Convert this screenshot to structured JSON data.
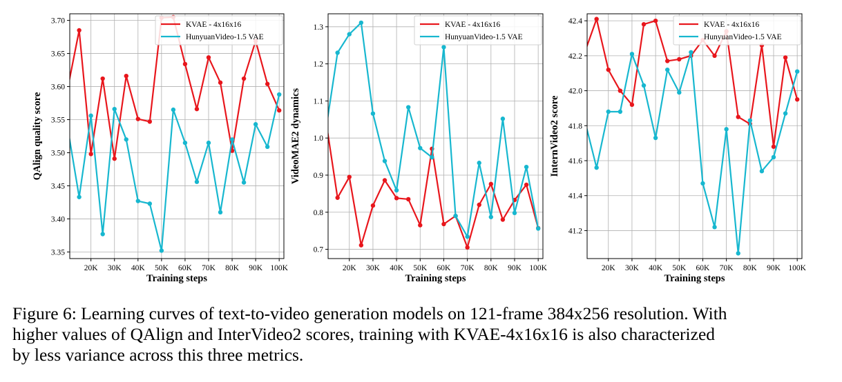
{
  "colors": {
    "kvae": "#e8161c",
    "hunyuan": "#17b7cf",
    "grid": "#b0b0b0"
  },
  "chart_data": [
    {
      "type": "line",
      "xlabel": "Training steps",
      "ylabel": "QAlign quality score",
      "xlim": [
        11000,
        102000
      ],
      "ylim": [
        3.34,
        3.71
      ],
      "xticks": [
        20000,
        30000,
        40000,
        50000,
        60000,
        70000,
        80000,
        90000,
        100000
      ],
      "xtick_labels": [
        "20K",
        "30K",
        "40K",
        "50K",
        "60K",
        "70K",
        "80K",
        "90K",
        "100K"
      ],
      "yticks": [
        3.35,
        3.4,
        3.45,
        3.5,
        3.55,
        3.6,
        3.65,
        3.7
      ],
      "ytick_labels": [
        "3.35",
        "3.40",
        "3.45",
        "3.50",
        "3.55",
        "3.60",
        "3.65",
        "3.70"
      ],
      "legend": "top-right",
      "grid": true,
      "x": [
        10000,
        15000,
        20000,
        25000,
        30000,
        35000,
        40000,
        45000,
        50000,
        55000,
        60000,
        65000,
        70000,
        75000,
        80000,
        85000,
        90000,
        95000,
        100000
      ],
      "series": [
        {
          "name": "KVAE - 4x16x16",
          "values": [
            3.595,
            3.685,
            3.498,
            3.612,
            3.491,
            3.616,
            3.551,
            3.547,
            3.704,
            3.705,
            3.634,
            3.566,
            3.644,
            3.606,
            3.503,
            3.612,
            3.669,
            3.604,
            3.564
          ]
        },
        {
          "name": "HunyuanVideo-1.5 VAE",
          "values": [
            3.54,
            3.433,
            3.556,
            3.377,
            3.566,
            3.52,
            3.427,
            3.423,
            3.352,
            3.565,
            3.515,
            3.456,
            3.515,
            3.41,
            3.52,
            3.455,
            3.543,
            3.509,
            3.588
          ]
        }
      ]
    },
    {
      "type": "line",
      "xlabel": "Training steps",
      "ylabel": "VideoMAE2 dynamics",
      "xlim": [
        11000,
        102000
      ],
      "ylim": [
        0.675,
        1.335
      ],
      "xticks": [
        20000,
        30000,
        40000,
        50000,
        60000,
        70000,
        80000,
        90000,
        100000
      ],
      "xtick_labels": [
        "20K",
        "30K",
        "40K",
        "50K",
        "60K",
        "70K",
        "80K",
        "90K",
        "100K"
      ],
      "yticks": [
        0.7,
        0.8,
        0.9,
        1.0,
        1.1,
        1.2,
        1.3
      ],
      "ytick_labels": [
        "0.7",
        "0.8",
        "0.9",
        "1.0",
        "1.1",
        "1.2",
        "1.3"
      ],
      "legend": "top-right",
      "grid": true,
      "x": [
        10000,
        15000,
        20000,
        25000,
        30000,
        35000,
        40000,
        45000,
        50000,
        55000,
        60000,
        65000,
        70000,
        75000,
        80000,
        85000,
        90000,
        95000,
        100000
      ],
      "series": [
        {
          "name": "KVAE - 4x16x16",
          "values": [
            1.05,
            0.839,
            0.895,
            0.711,
            0.818,
            0.886,
            0.838,
            0.835,
            0.765,
            0.971,
            0.768,
            0.79,
            0.705,
            0.82,
            0.876,
            0.78,
            0.833,
            0.874,
            0.757
          ]
        },
        {
          "name": "HunyuanVideo-1.5 VAE",
          "values": [
            1.02,
            1.23,
            1.28,
            1.311,
            1.066,
            0.938,
            0.859,
            1.083,
            0.973,
            0.948,
            1.245,
            0.79,
            0.734,
            0.933,
            0.787,
            1.052,
            0.798,
            0.922,
            0.756
          ]
        }
      ]
    },
    {
      "type": "line",
      "xlabel": "Training steps",
      "ylabel": "InternVideo2 score",
      "xlim": [
        11000,
        102000
      ],
      "ylim": [
        41.04,
        42.44
      ],
      "xticks": [
        20000,
        30000,
        40000,
        50000,
        60000,
        70000,
        80000,
        90000,
        100000
      ],
      "xtick_labels": [
        "20K",
        "30K",
        "40K",
        "50K",
        "60K",
        "70K",
        "80K",
        "90K",
        "100K"
      ],
      "yticks": [
        41.2,
        41.4,
        41.6,
        41.8,
        42.0,
        42.2,
        42.4
      ],
      "ytick_labels": [
        "41.2",
        "41.4",
        "41.6",
        "41.8",
        "42.0",
        "42.2",
        "42.4"
      ],
      "legend": "top-right",
      "grid": true,
      "x": [
        10000,
        15000,
        20000,
        25000,
        30000,
        35000,
        40000,
        45000,
        50000,
        55000,
        60000,
        65000,
        70000,
        75000,
        80000,
        85000,
        90000,
        95000,
        100000
      ],
      "series": [
        {
          "name": "KVAE - 4x16x16",
          "values": [
            42.22,
            42.41,
            42.12,
            42.0,
            41.92,
            42.38,
            42.4,
            42.17,
            42.18,
            42.2,
            42.29,
            42.2,
            42.34,
            41.85,
            41.81,
            42.26,
            41.68,
            42.19,
            41.95
          ]
        },
        {
          "name": "HunyuanVideo-1.5 VAE",
          "values": [
            41.83,
            41.56,
            41.88,
            41.88,
            42.21,
            42.03,
            41.73,
            42.12,
            41.99,
            42.22,
            41.47,
            41.22,
            41.78,
            41.07,
            41.83,
            41.54,
            41.62,
            41.87,
            42.11
          ]
        }
      ]
    }
  ],
  "caption": {
    "line1": "Figure 6: Learning curves of text-to-video generation models on 121-frame 384x256 resolution. With",
    "line2": "higher values of QAlign and InterVideo2 scores, training with KVAE-4x16x16 is also characterized",
    "line3": "by less variance across this three metrics."
  }
}
